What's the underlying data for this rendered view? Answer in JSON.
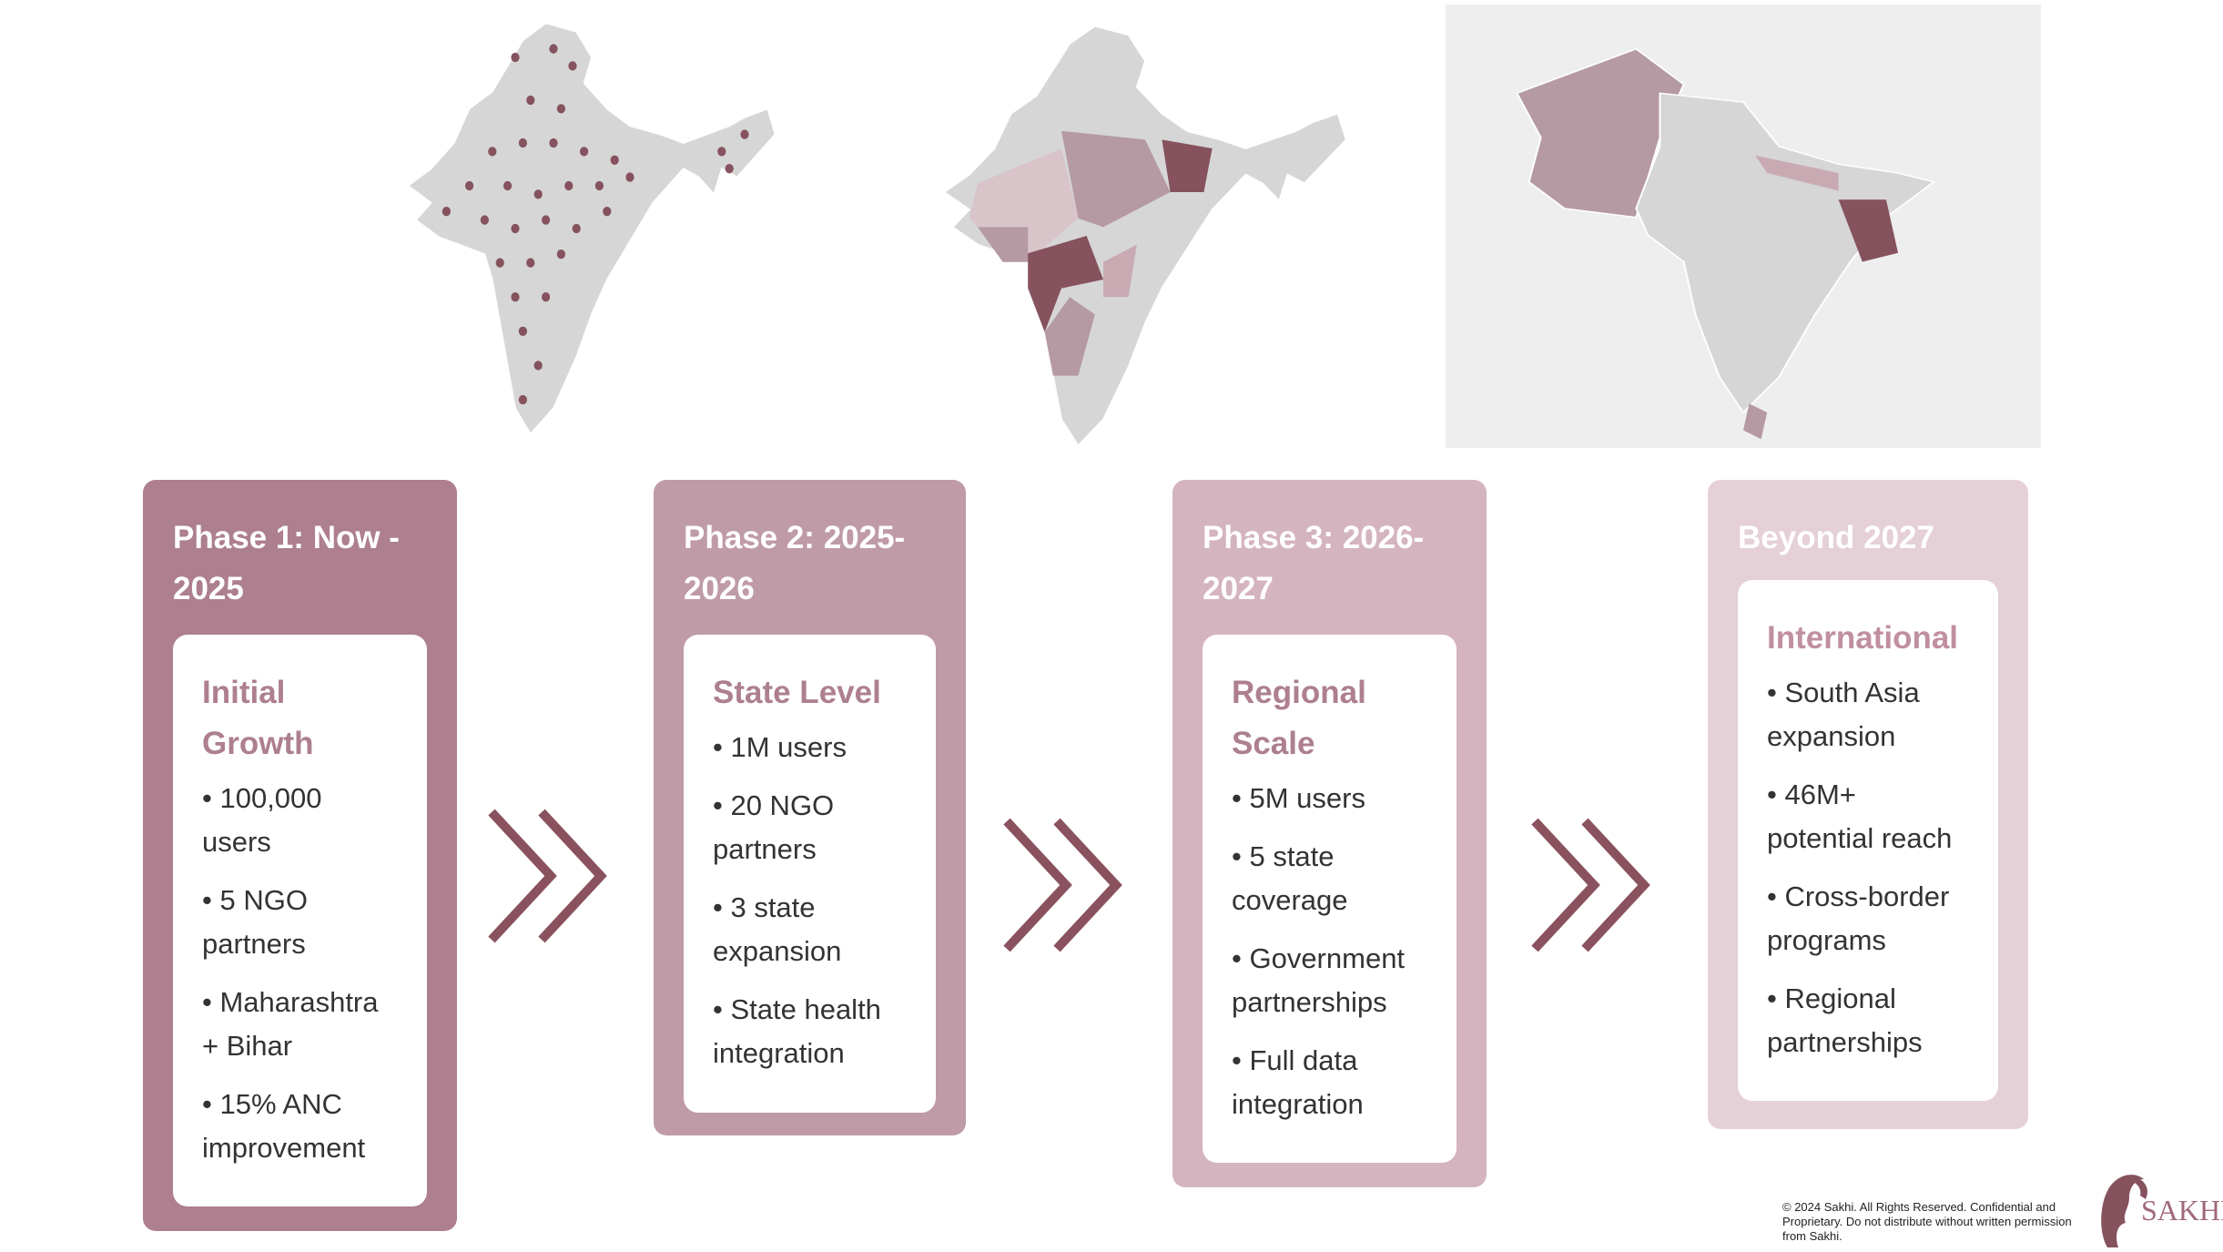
{
  "colors": {
    "phase1": "#ad7f8f",
    "phase2": "#bf9aa7",
    "phase3": "#d4b4bf",
    "phase4": "#e5d0d8",
    "arrow": "#8a525e",
    "map_base": "#d6d6d6",
    "map_highlight": "#85525e"
  },
  "phases": [
    {
      "title": "Phase 1: Now - 2025",
      "subtitle": "Initial Growth",
      "bullets": [
        "• 100,000 users",
        "• 5 NGO partners",
        "• Maharashtra + Bihar",
        "• 15% ANC improvement"
      ]
    },
    {
      "title": "Phase 2: 2025-2026",
      "subtitle": "State Level",
      "bullets": [
        "• 1M users",
        "• 20 NGO partners",
        "• 3 state expansion",
        "• State health integration"
      ]
    },
    {
      "title": "Phase 3: 2026-2027",
      "subtitle": "Regional Scale",
      "bullets": [
        "• 5M users",
        "• 5 state coverage",
        "• Government partnerships",
        "• Full data integration"
      ]
    },
    {
      "title": "Beyond 2027",
      "subtitle": "International",
      "bullets": [
        "• South Asia expansion",
        "• 46M+ potential reach",
        "• Cross-border programs",
        "• Regional partnerships"
      ]
    }
  ],
  "footer": {
    "copyright": "© 2024 Sakhi. All Rights Reserved. Confidential and Proprietary. Do not distribute without written permission from Sakhi.",
    "logo_text": "SAKHI"
  }
}
